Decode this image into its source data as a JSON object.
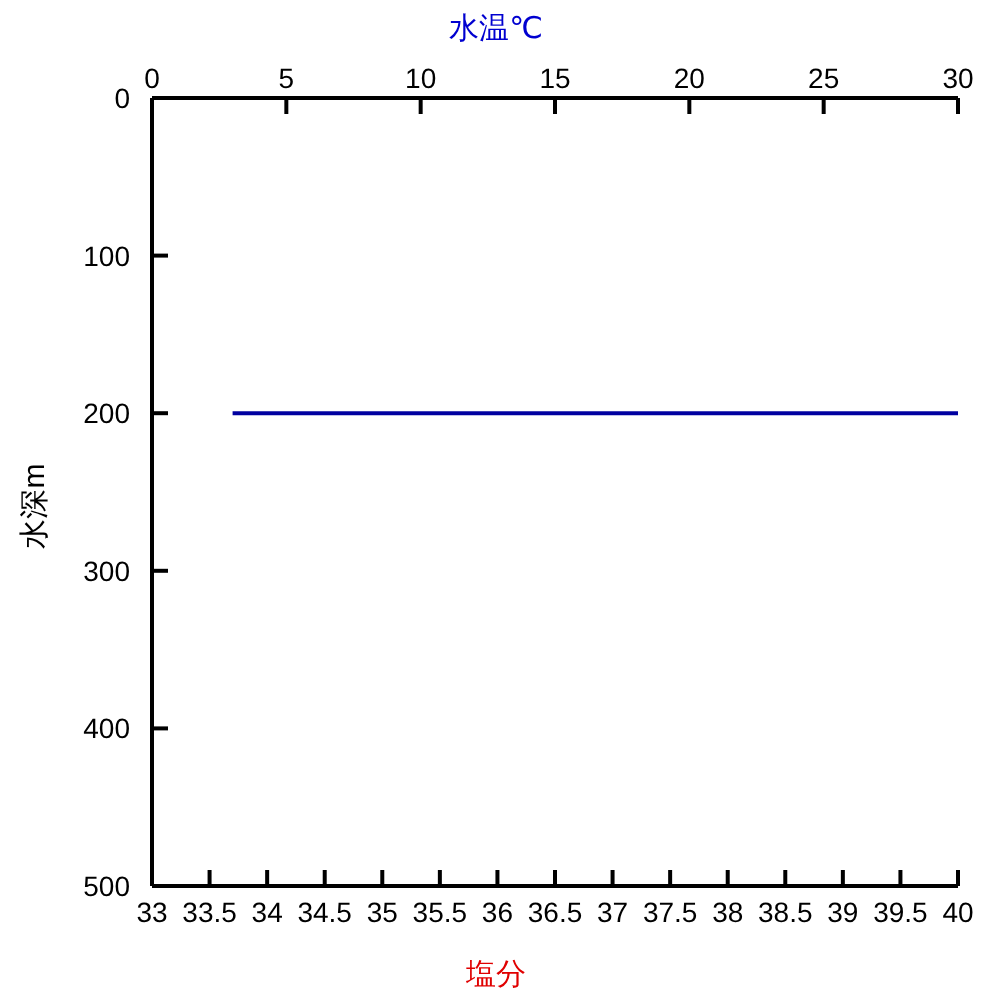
{
  "chart_data": {
    "type": "line",
    "xlabel": "塩分",
    "x2label": "水温℃",
    "ylabel": "水深m",
    "xlim": [
      33,
      40
    ],
    "xticks": [
      33,
      33.5,
      34,
      34.5,
      35,
      35.5,
      36,
      36.5,
      37,
      37.5,
      38,
      38.5,
      39,
      39.5,
      40
    ],
    "x2lim": [
      0,
      30
    ],
    "x2ticks": [
      0,
      5,
      10,
      15,
      20,
      25,
      30
    ],
    "ylim": [
      500,
      0
    ],
    "yticks": [
      0,
      100,
      200,
      300,
      400,
      500
    ],
    "series": [
      {
        "color": "#0000a0",
        "axis": "x2",
        "x": [
          3,
          30
        ],
        "values": [
          200,
          200
        ]
      }
    ]
  }
}
